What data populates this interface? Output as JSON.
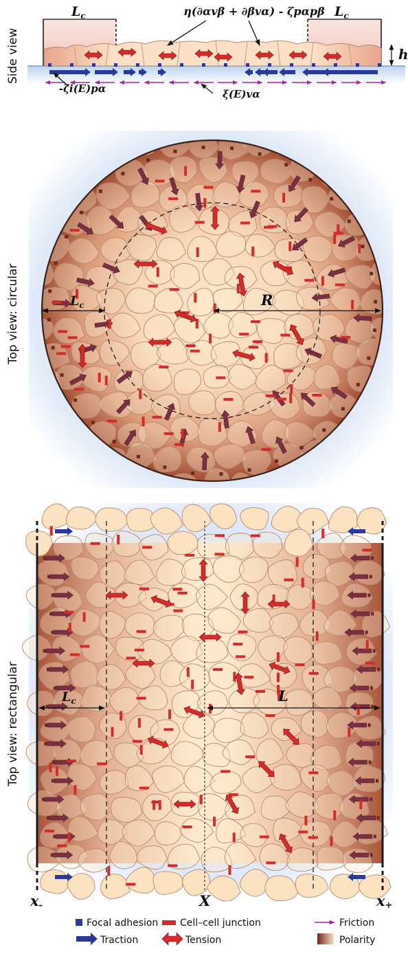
{
  "side_view": {
    "label": "Side view",
    "lc_left": "L",
    "lc_sub": "c",
    "lc_right": "L",
    "h_label": "h",
    "stress_expr": "η(∂αvβ + ∂βvα) - ζpαpβ",
    "traction_expr": "-ζi(E)pα",
    "friction_expr": "ξ(E)vα"
  },
  "top_circular": {
    "label": "Top view: circular",
    "lc": "L",
    "lc_sub": "c",
    "r_label": "R"
  },
  "top_rectangular": {
    "label": "Top view: rectangular",
    "lc": "L",
    "lc_sub": "c",
    "l_label": "L",
    "x_minus": "x",
    "x_minus_sub": "-",
    "x_center": "X",
    "x_plus": "x",
    "x_plus_sub": "+"
  },
  "legend": {
    "focal_adhesion": "Focal adhesion",
    "cell_junction": "Cell–cell junction",
    "friction": "Friction",
    "traction": "Traction",
    "tension": "Tension",
    "polarity": "Polarity"
  },
  "colors": {
    "cell_fill": "#fbe3c2",
    "cell_stroke": "#b98870",
    "edge": "#a65236",
    "traction": "#2a3a9a",
    "junction": "#d42b2b",
    "friction": "#9c2aa6",
    "polarity_arrow": "#7a3040",
    "background": "#dde9f6"
  }
}
